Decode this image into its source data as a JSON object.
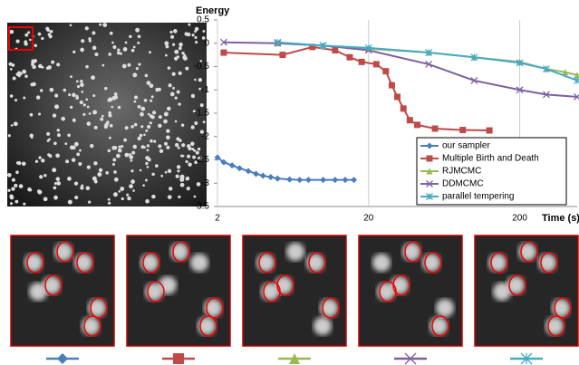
{
  "chart_data": {
    "type": "line",
    "y_label": "Energy",
    "x_label": "Time (s)",
    "xscale": "log",
    "xlim": [
      2,
      480
    ],
    "xticks": [
      2,
      20,
      200
    ],
    "ylim": [
      -3.5,
      0.5
    ],
    "yticks": [
      0.5,
      0,
      -0.5,
      -1,
      -1.5,
      -2,
      -2.5,
      -3,
      -3.5
    ],
    "grid": true,
    "legend": "lower right",
    "series": [
      {
        "name": "our sampler",
        "color": "#4a7ebb",
        "marker": "diamond",
        "x": [
          2,
          2.2,
          2.5,
          2.8,
          3.2,
          3.6,
          4,
          4.5,
          5,
          6,
          7,
          8,
          10,
          12,
          14,
          16
        ],
        "values": [
          -2.45,
          -2.55,
          -2.62,
          -2.68,
          -2.74,
          -2.8,
          -2.84,
          -2.87,
          -2.9,
          -2.92,
          -2.93,
          -2.93,
          -2.93,
          -2.93,
          -2.93,
          -2.93
        ]
      },
      {
        "name": "Multiple Birth and Death",
        "color": "#be4b48",
        "marker": "square",
        "x": [
          2.2,
          5.4,
          8.5,
          12,
          15,
          18,
          22.5,
          26,
          28.5,
          31,
          34,
          37.5,
          42,
          55,
          84,
          126
        ],
        "values": [
          -0.2,
          -0.25,
          -0.08,
          -0.15,
          -0.3,
          -0.4,
          -0.45,
          -0.6,
          -0.9,
          -1.15,
          -1.4,
          -1.65,
          -1.75,
          -1.83,
          -1.86,
          -1.87
        ]
      },
      {
        "name": "RJMCMC",
        "color": "#98b954",
        "marker": "triangle",
        "x": [
          5,
          10,
          20,
          50,
          100,
          200,
          300,
          400,
          480
        ],
        "values": [
          0,
          -0.05,
          -0.12,
          -0.2,
          -0.3,
          -0.4,
          -0.55,
          -0.62,
          -0.68
        ]
      },
      {
        "name": "DDMCMC",
        "color": "#7d60a0",
        "marker": "x",
        "x": [
          2.2,
          5,
          10,
          20,
          50,
          100,
          200,
          300,
          480
        ],
        "values": [
          0.02,
          0,
          -0.05,
          -0.15,
          -0.45,
          -0.8,
          -1.0,
          -1.1,
          -1.15
        ]
      },
      {
        "name": "parallel tempering",
        "color": "#46aac5",
        "marker": "star",
        "x": [
          5,
          10,
          20,
          50,
          100,
          200,
          300,
          480
        ],
        "values": [
          0.02,
          -0.05,
          -0.1,
          -0.2,
          -0.3,
          -0.42,
          -0.55,
          -0.8
        ]
      }
    ]
  }
}
